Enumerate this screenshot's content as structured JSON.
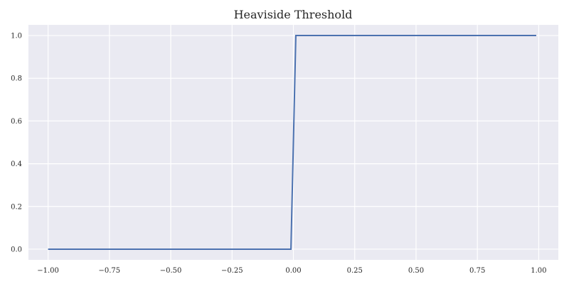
{
  "chart_data": {
    "type": "line",
    "title": "Heaviside Threshold",
    "xlabel": "",
    "ylabel": "",
    "xlim": [
      -1.08,
      1.08
    ],
    "ylim": [
      -0.05,
      1.05
    ],
    "xticks": [
      -1.0,
      -0.75,
      -0.5,
      -0.25,
      0.0,
      0.25,
      0.5,
      0.75,
      1.0
    ],
    "xtick_labels": [
      "−1.00",
      "−0.75",
      "−0.50",
      "−0.25",
      "0.00",
      "0.25",
      "0.50",
      "0.75",
      "1.00"
    ],
    "yticks": [
      0.0,
      0.2,
      0.4,
      0.6,
      0.8,
      1.0
    ],
    "ytick_labels": [
      "0.0",
      "0.2",
      "0.4",
      "0.6",
      "0.8",
      "1.0"
    ],
    "grid": true,
    "series": [
      {
        "color": "#4c72b0",
        "x": [
          -1.0,
          -0.01,
          0.01,
          0.99
        ],
        "y": [
          0,
          0,
          1,
          1
        ]
      }
    ],
    "colors": {
      "background": "#eaeaf2",
      "grid": "#ffffff",
      "line": "#4c72b0"
    }
  }
}
